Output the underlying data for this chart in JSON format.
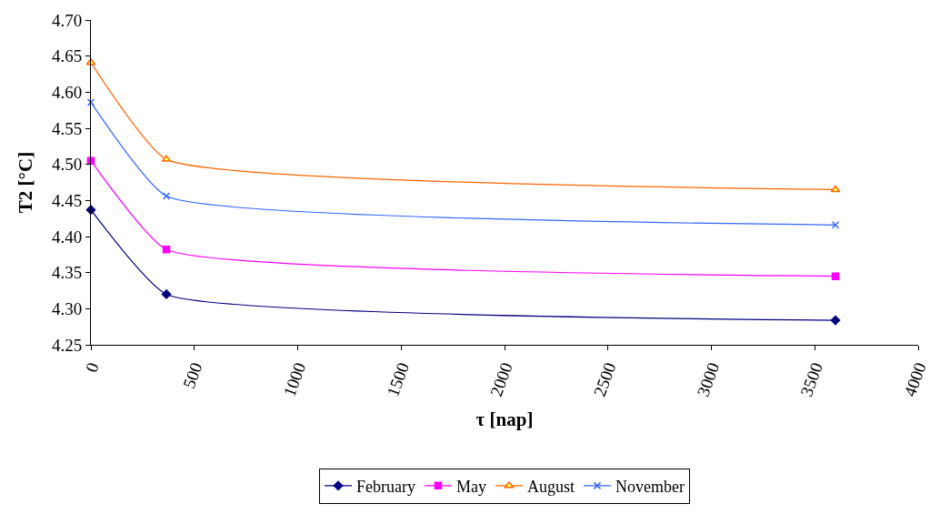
{
  "chart_data": {
    "type": "line",
    "xlabel": "τ [nap]",
    "ylabel": "T2 [°C]",
    "x": [
      0,
      365,
      3600
    ],
    "series": [
      {
        "name": "February",
        "color": "#000080",
        "marker": "diamond",
        "values": [
          4.437,
          4.32,
          4.284
        ]
      },
      {
        "name": "May",
        "color": "#ff00ff",
        "marker": "square",
        "values": [
          4.505,
          4.382,
          4.345
        ]
      },
      {
        "name": "August",
        "color": "#ff6600",
        "marker": "triangle",
        "values": [
          4.641,
          4.507,
          4.465
        ]
      },
      {
        "name": "November",
        "color": "#3366ff",
        "marker": "cross",
        "values": [
          4.586,
          4.456,
          4.416
        ]
      }
    ],
    "xlim": [
      0,
      4000
    ],
    "xticks": [
      0,
      500,
      1000,
      1500,
      2000,
      2500,
      3000,
      3500,
      4000
    ],
    "ylim": [
      4.25,
      4.7
    ],
    "yticks": [
      4.25,
      {
        "value": 4.3,
        "label": "4.30"
      },
      4.35,
      {
        "value": 4.4,
        "label": "4.40"
      },
      4.45,
      {
        "value": 4.5,
        "label": "4.50"
      },
      4.55,
      {
        "value": 4.6,
        "label": "4.60"
      },
      4.65,
      {
        "value": 4.7,
        "label": "4.70"
      }
    ],
    "legend": "bottom"
  }
}
